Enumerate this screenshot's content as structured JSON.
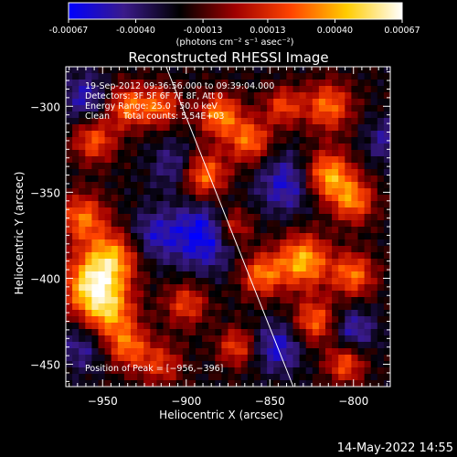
{
  "colorbar": {
    "tick_labels": [
      "-0.00067",
      "-0.00040",
      "-0.00013",
      "0.00013",
      "0.00040",
      "0.00067"
    ],
    "tick_values": [
      -0.00067,
      -0.0004,
      -0.00013,
      0.00013,
      0.0004,
      0.00067
    ],
    "range": [
      -0.00067,
      0.00067
    ],
    "unit_label": "(photons cm⁻² s⁻¹ asec⁻²)",
    "colormap_stops": [
      "#0000ff",
      "#3a1a8a",
      "#000000",
      "#a00000",
      "#ff4400",
      "#ffcc00",
      "#ffffff"
    ]
  },
  "chart_data": {
    "type": "heatmap",
    "title": "Reconstructed RHESSI Image",
    "xlabel": "Heliocentric X (arcsec)",
    "ylabel": "Heliocentric Y (arcsec)",
    "xlim": [
      -972,
      -778
    ],
    "ylim": [
      -463,
      -277
    ],
    "x_ticks": [
      -950,
      -900,
      -850,
      -800
    ],
    "x_tick_labels": [
      "−950",
      "−900",
      "−850",
      "−800"
    ],
    "y_ticks": [
      -300,
      -350,
      -400,
      -450
    ],
    "y_tick_labels": [
      "−300",
      "−350",
      "−400",
      "−450"
    ],
    "peak": [
      -956,
      -396
    ],
    "limb_line": [
      [
        -912,
        -277
      ],
      [
        -836,
        -463
      ]
    ],
    "annotations": [
      "19-Sep-2012 09:36:56.000 to 09:39:04.000",
      "Detectors: 3F 5F 6F 7F 8F, Att 0",
      "Energy Range: 25.0 - 50.0 keV",
      "Clean     Total counts: 5.54E+03"
    ],
    "peak_label": "Position of Peak = [−956,−396]",
    "sources": [
      {
        "x": -957,
        "y": -404,
        "amp": 0.00067,
        "r": 12
      },
      {
        "x": -944,
        "y": -388,
        "amp": 0.00055,
        "r": 11
      },
      {
        "x": -962,
        "y": -365,
        "amp": 0.0005,
        "r": 10
      },
      {
        "x": -946,
        "y": -420,
        "amp": 0.00052,
        "r": 11
      },
      {
        "x": -935,
        "y": -440,
        "amp": 0.00045,
        "r": 9
      },
      {
        "x": -955,
        "y": -320,
        "amp": 0.00045,
        "r": 9
      },
      {
        "x": -935,
        "y": -300,
        "amp": 0.0005,
        "r": 9
      },
      {
        "x": -915,
        "y": -300,
        "amp": 0.00045,
        "r": 8
      },
      {
        "x": -890,
        "y": -340,
        "amp": 0.00058,
        "r": 10
      },
      {
        "x": -900,
        "y": -415,
        "amp": 0.0004,
        "r": 9
      },
      {
        "x": -915,
        "y": -450,
        "amp": 0.00035,
        "r": 9
      },
      {
        "x": -880,
        "y": -305,
        "amp": 0.00055,
        "r": 9
      },
      {
        "x": -862,
        "y": -320,
        "amp": 0.0005,
        "r": 9
      },
      {
        "x": -842,
        "y": -300,
        "amp": 0.0004,
        "r": 8
      },
      {
        "x": -815,
        "y": -300,
        "amp": 0.0005,
        "r": 10
      },
      {
        "x": -815,
        "y": -340,
        "amp": 0.00062,
        "r": 10
      },
      {
        "x": -800,
        "y": -355,
        "amp": 0.0005,
        "r": 9
      },
      {
        "x": -830,
        "y": -390,
        "amp": 0.00064,
        "r": 11
      },
      {
        "x": -855,
        "y": -398,
        "amp": 0.0005,
        "r": 9
      },
      {
        "x": -800,
        "y": -398,
        "amp": 0.0005,
        "r": 9
      },
      {
        "x": -823,
        "y": -425,
        "amp": 0.00048,
        "r": 9
      },
      {
        "x": -805,
        "y": -450,
        "amp": 0.00045,
        "r": 8
      },
      {
        "x": -872,
        "y": -370,
        "amp": 0.00042,
        "r": 8
      },
      {
        "x": -870,
        "y": -440,
        "amp": 0.0004,
        "r": 8
      },
      {
        "x": -890,
        "y": -375,
        "amp": -0.00045,
        "r": 14
      },
      {
        "x": -905,
        "y": -335,
        "amp": -0.0003,
        "r": 10
      },
      {
        "x": -840,
        "y": -345,
        "amp": -0.00035,
        "r": 12
      },
      {
        "x": -845,
        "y": -440,
        "amp": -0.00035,
        "r": 10
      },
      {
        "x": -962,
        "y": -440,
        "amp": -0.00025,
        "r": 10
      },
      {
        "x": -920,
        "y": -375,
        "amp": -0.00028,
        "r": 10
      },
      {
        "x": -960,
        "y": -295,
        "amp": -0.0003,
        "r": 10
      },
      {
        "x": -800,
        "y": -430,
        "amp": -0.0003,
        "r": 9
      },
      {
        "x": -780,
        "y": -320,
        "amp": -0.00025,
        "r": 9
      }
    ]
  },
  "footer": {
    "timestamp": "14-May-2022 14:55"
  }
}
